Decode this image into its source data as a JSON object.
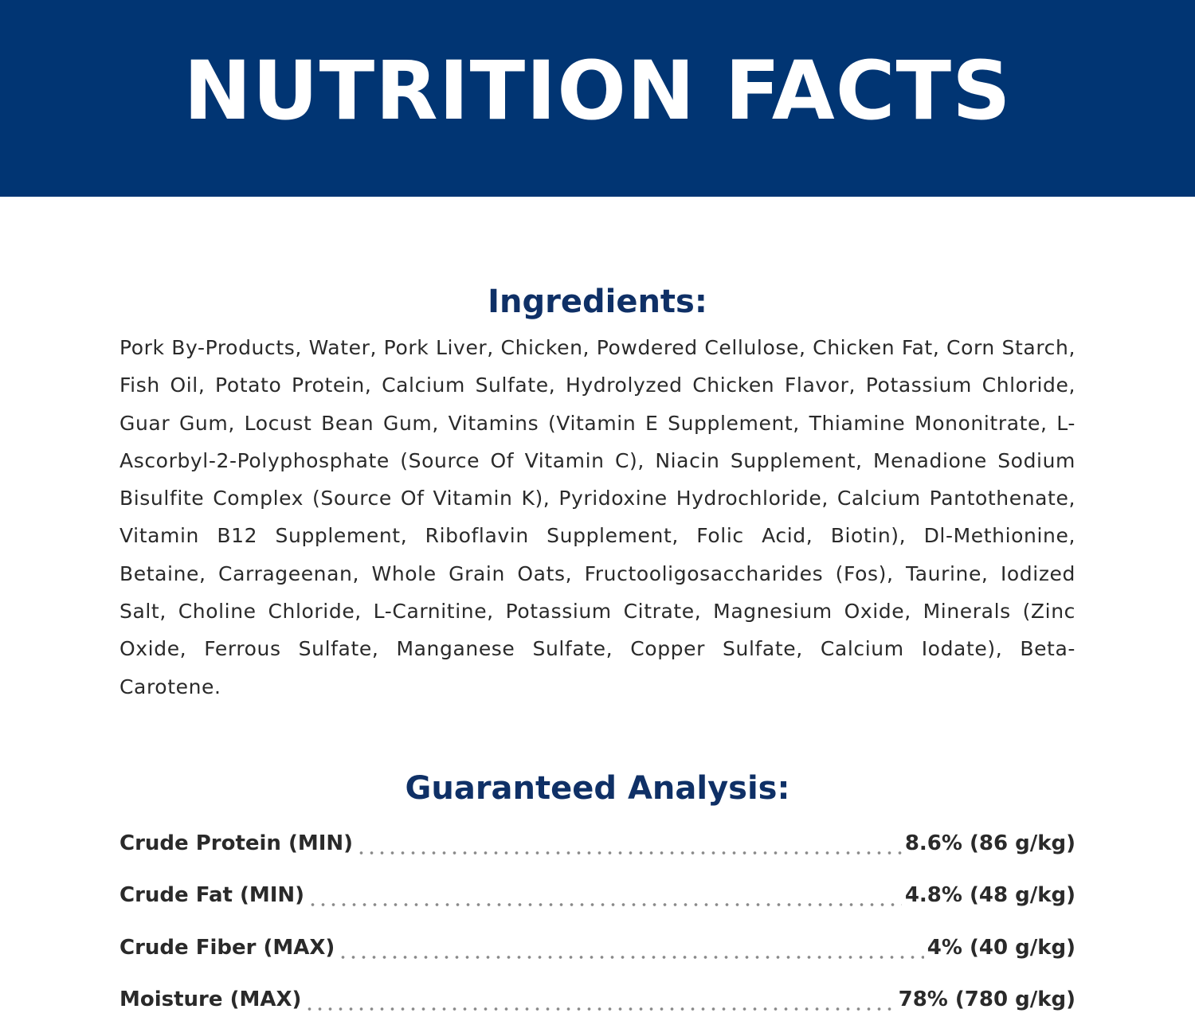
{
  "banner": {
    "title": "NUTRITION FACTS",
    "background_color": "#013573"
  },
  "ingredients": {
    "heading": "Ingredients:",
    "text": "Pork By-Products, Water, Pork Liver, Chicken, Powdered Cellulose, Chicken Fat, Corn Starch, Fish Oil, Potato Protein, Calcium Sulfate, Hydrolyzed Chicken Flavor, Potassium Chloride, Guar Gum, Locust Bean Gum, Vitamins (Vitamin E Supplement, Thiamine Mononitrate, L-Ascorbyl-2-Polyphosphate (Source Of Vitamin C), Niacin Supplement, Menadione Sodium Bisulfite Complex (Source Of Vitamin K), Pyridoxine Hydrochloride, Calcium Pantothenate, Vitamin B12 Supplement, Riboflavin Supplement, Folic Acid, Biotin), Dl-Methionine, Betaine, Carrageenan, Whole Grain Oats, Fructooligosaccharides (Fos), Taurine, Iodized Salt, Choline Chloride, L-Carnitine, Potassium Citrate, Magnesium Oxide, Minerals (Zinc Oxide, Ferrous Sulfate, Manganese Sulfate, Copper Sulfate, Calcium Iodate), Beta-Carotene."
  },
  "analysis": {
    "heading": "Guaranteed Analysis:",
    "rows": [
      {
        "label": "Crude Protein (MIN)",
        "value": "8.6% (86 g/kg)"
      },
      {
        "label": "Crude Fat (MIN)",
        "value": "4.8% (48 g/kg)"
      },
      {
        "label": "Crude Fiber (MAX)",
        "value": "4% (40 g/kg)"
      },
      {
        "label": "Moisture (MAX)",
        "value": "78% (780 g/kg)"
      }
    ]
  },
  "colors": {
    "heading": "#0f3066",
    "body_text": "#2a2a2a"
  }
}
